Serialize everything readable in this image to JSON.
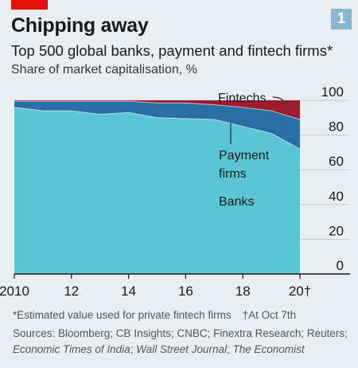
{
  "badge": "1",
  "title": "Chipping away",
  "subtitle": "Top 500 global banks, payment and fintech firms*",
  "measure": "Share of market capitalisation, %",
  "footnote": {
    "estimated": "*Estimated value used for private fintech firms",
    "dagger": "†At Oct 7th"
  },
  "sources": {
    "line1": "Sources: Bloomberg; CB Insights; CNBC; Finextra Research; Reuters;",
    "line2a": "Economic Times of India",
    "sep1": "; ",
    "line2b": "Wall Street Journal",
    "sep2": "; ",
    "line2c": "The Economist"
  },
  "colors": {
    "banks": "#5ac5d5",
    "payment": "#2a6ea6",
    "fintech": "#9c1c2e",
    "background": "#e8eef2",
    "accent": "#e3120b",
    "badge": "#8ab4cf"
  },
  "chart_data": {
    "type": "area",
    "stacked": true,
    "x": [
      2010,
      2011,
      2012,
      2013,
      2014,
      2015,
      2016,
      2017,
      2018,
      2019,
      2020
    ],
    "xticks": [
      {
        "value": 2010,
        "label": "2010"
      },
      {
        "value": 2012,
        "label": "12"
      },
      {
        "value": 2014,
        "label": "14"
      },
      {
        "value": 2016,
        "label": "16"
      },
      {
        "value": 2018,
        "label": "18"
      },
      {
        "value": 2020,
        "label": "20†"
      }
    ],
    "yticks": [
      0,
      20,
      40,
      60,
      80,
      100
    ],
    "ylim": [
      0,
      100
    ],
    "xlim": [
      2010,
      2020
    ],
    "grid": true,
    "series": [
      {
        "name": "Banks",
        "values": [
          96,
          94,
          94,
          92,
          93,
          90,
          89.5,
          89,
          85,
          81,
          72
        ]
      },
      {
        "name": "Payment firms",
        "values": [
          3.5,
          5.5,
          5.5,
          7.5,
          6.5,
          8.5,
          9,
          8.5,
          11,
          13,
          17
        ]
      },
      {
        "name": "Fintechs",
        "values": [
          0.5,
          0.5,
          0.5,
          0.5,
          0.5,
          1.5,
          1.5,
          2.5,
          4,
          6,
          11
        ]
      }
    ],
    "labels": {
      "banks": "Banks",
      "payment_line1": "Payment",
      "payment_line2": "firms",
      "fintechs": "Fintechs"
    }
  }
}
